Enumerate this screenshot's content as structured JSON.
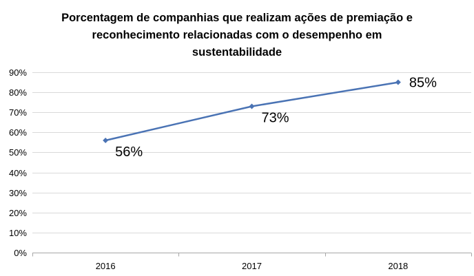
{
  "chart_data": {
    "type": "line",
    "title_lines": [
      "Porcentagem de companhias que realizam ações de premiação e",
      "reconhecimento relacionadas com o desempenho em",
      "sustentabilidade"
    ],
    "categories": [
      "2016",
      "2017",
      "2018"
    ],
    "series": [
      {
        "name": "Porcentagem de companhias",
        "values": [
          56,
          73,
          85
        ],
        "data_labels": [
          "56%",
          "73%",
          "85%"
        ],
        "color": "#4a73b4"
      }
    ],
    "y_ticks": [
      "0%",
      "10%",
      "20%",
      "30%",
      "40%",
      "50%",
      "60%",
      "70%",
      "80%",
      "90%"
    ],
    "ylim": [
      0,
      90
    ],
    "ytick_step": 10,
    "grid": true,
    "grid_color": "#d9d9d9",
    "axis_color": "#a6a6a6",
    "legend": "none",
    "xlabel": "",
    "ylabel": ""
  }
}
